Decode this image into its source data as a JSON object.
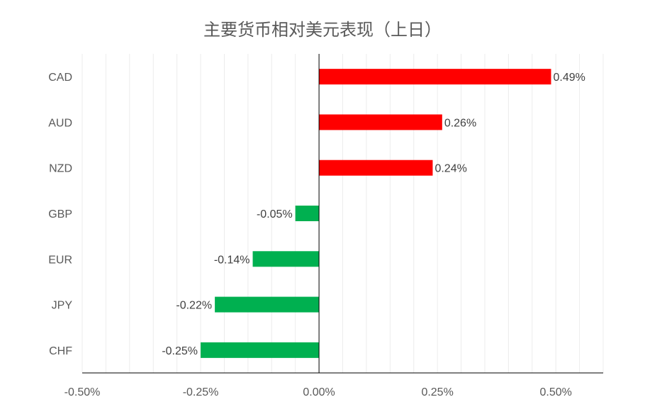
{
  "chart_data": {
    "type": "bar",
    "orientation": "horizontal",
    "title": "主要货币相对美元表现（上日）",
    "categories": [
      "CAD",
      "AUD",
      "NZD",
      "GBP",
      "EUR",
      "JPY",
      "CHF"
    ],
    "values": [
      0.49,
      0.26,
      0.24,
      -0.05,
      -0.14,
      -0.22,
      -0.25
    ],
    "data_labels": [
      "0.49%",
      "0.26%",
      "0.24%",
      "-0.05%",
      "-0.14%",
      "-0.22%",
      "-0.25%"
    ],
    "xlim": [
      -0.5,
      0.6
    ],
    "x_ticks": [
      -0.5,
      -0.25,
      0,
      0.25,
      0.5
    ],
    "x_tick_labels": [
      "-0.50%",
      "-0.25%",
      "0.00%",
      "0.25%",
      "0.50%"
    ],
    "positive_color": "#ff0000",
    "negative_color": "#00b050",
    "grid": true,
    "legend": "none"
  }
}
